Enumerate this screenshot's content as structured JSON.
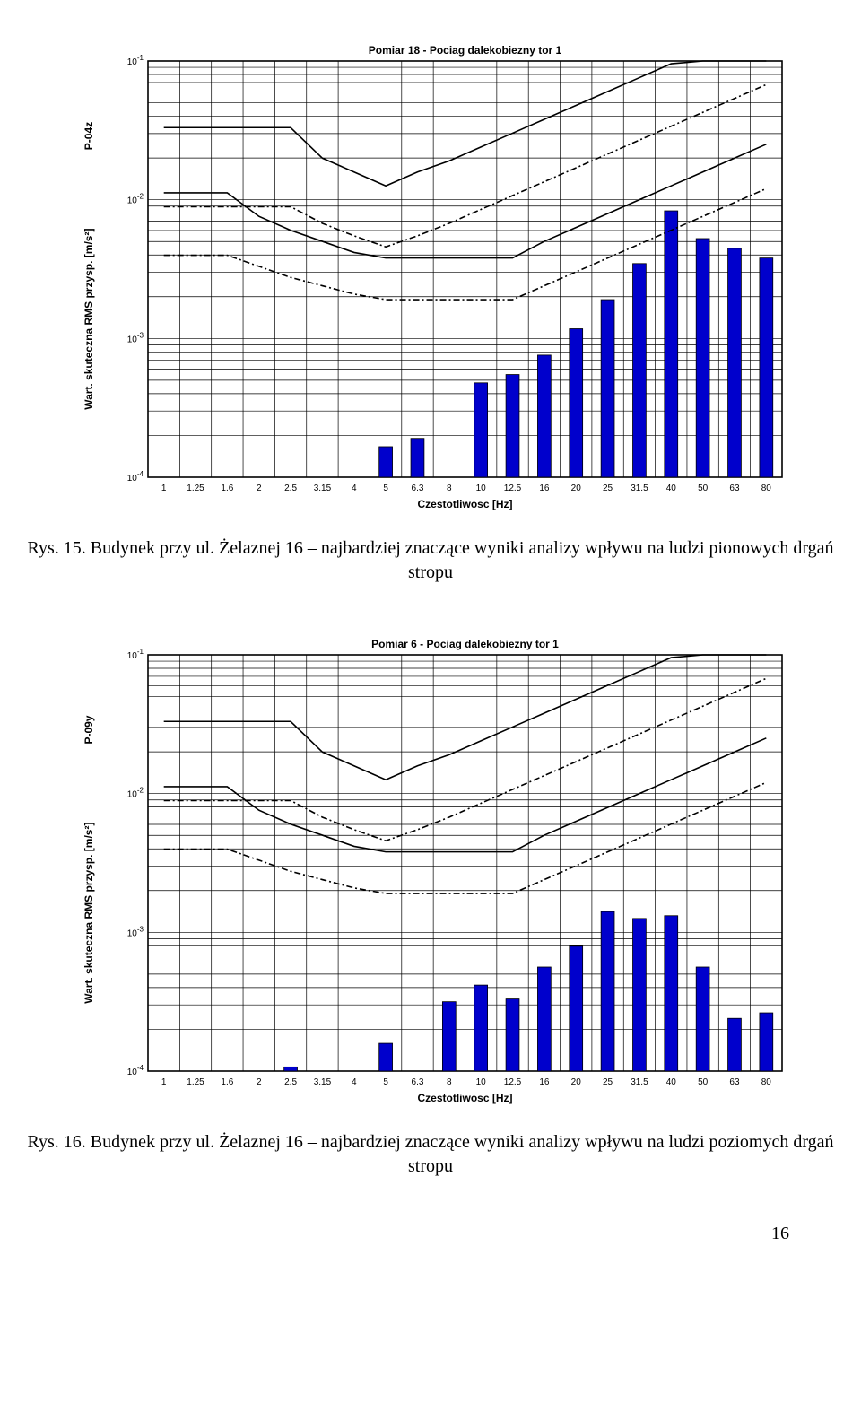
{
  "page_number": "16",
  "charts": [
    {
      "id": "chart1",
      "title": "Pomiar 18 - Pociag dalekobiezny tor 1",
      "y_rot_label": "P-04z",
      "x_categories": [
        "1",
        "1.25",
        "1.6",
        "2",
        "2.5",
        "3.15",
        "4",
        "5",
        "6.3",
        "8",
        "10",
        "12.5",
        "16",
        "20",
        "25",
        "31.5",
        "40",
        "50",
        "63",
        "80"
      ],
      "xlabel": "Czestotliwosc [Hz]",
      "ylabel": "Wart. skuteczna RMS przysp. [m/s²]",
      "y_decades": [
        -4,
        -3,
        -2,
        -1
      ],
      "y_exp_min": -4,
      "y_exp_max": -1,
      "bar_color": "#0000cc",
      "bar_edge": "#000000",
      "grid_color": "#000000",
      "bg": "#ffffff",
      "title_fontsize": 12,
      "tick_fontsize": 10,
      "bars_exp": [
        null,
        null,
        null,
        null,
        null,
        null,
        null,
        -3.78,
        -3.72,
        null,
        -3.32,
        -3.26,
        -3.12,
        -2.93,
        -2.72,
        -2.46,
        -2.08,
        -2.28,
        -2.35,
        -2.42
      ],
      "env": {
        "solid_upper_exp": [
          -1.48,
          -1.48,
          -1.48,
          -1.48,
          -1.48,
          -1.7,
          -1.8,
          -1.9,
          -1.8,
          -1.72,
          -1.62,
          -1.52,
          -1.42,
          -1.32,
          -1.22,
          -1.12,
          -1.02,
          -1.0,
          -1.0,
          -1.0
        ],
        "solid_lower_exp": [
          -1.95,
          -1.95,
          -1.95,
          -2.12,
          -2.22,
          -2.3,
          -2.38,
          -2.42,
          -2.42,
          -2.42,
          -2.42,
          -2.42,
          -2.3,
          -2.2,
          -2.1,
          -2.0,
          -1.9,
          -1.8,
          -1.7,
          -1.6
        ],
        "dashdot_upper_exp": [
          -2.05,
          -2.05,
          -2.05,
          -2.05,
          -2.05,
          -2.17,
          -2.26,
          -2.34,
          -2.26,
          -2.17,
          -2.07,
          -1.97,
          -1.87,
          -1.77,
          -1.67,
          -1.57,
          -1.47,
          -1.37,
          -1.27,
          -1.17
        ],
        "dashdot_lower_exp": [
          -2.4,
          -2.4,
          -2.4,
          -2.48,
          -2.56,
          -2.62,
          -2.68,
          -2.72,
          -2.72,
          -2.72,
          -2.72,
          -2.72,
          -2.62,
          -2.52,
          -2.42,
          -2.32,
          -2.22,
          -2.12,
          -2.02,
          -1.92
        ]
      }
    },
    {
      "id": "chart2",
      "title": "Pomiar 6 - Pociag dalekobiezny tor 1",
      "y_rot_label": "P-09y",
      "x_categories": [
        "1",
        "1.25",
        "1.6",
        "2",
        "2.5",
        "3.15",
        "4",
        "5",
        "6.3",
        "8",
        "10",
        "12.5",
        "16",
        "20",
        "25",
        "31.5",
        "40",
        "50",
        "63",
        "80"
      ],
      "xlabel": "Czestotliwosc [Hz]",
      "ylabel": "Wart. skuteczna RMS przysp. [m/s²]",
      "y_decades": [
        -4,
        -3,
        -2,
        -1
      ],
      "y_exp_min": -4,
      "y_exp_max": -1,
      "bar_color": "#0000cc",
      "bar_edge": "#000000",
      "grid_color": "#000000",
      "bg": "#ffffff",
      "title_fontsize": 12,
      "tick_fontsize": 10,
      "bars_exp": [
        null,
        null,
        null,
        null,
        -3.97,
        null,
        null,
        -3.8,
        null,
        -3.5,
        -3.38,
        -3.48,
        -3.25,
        -3.1,
        -2.85,
        -2.9,
        -2.88,
        -3.25,
        -3.62,
        -3.58
      ],
      "env": {
        "solid_upper_exp": [
          -1.48,
          -1.48,
          -1.48,
          -1.48,
          -1.48,
          -1.7,
          -1.8,
          -1.9,
          -1.8,
          -1.72,
          -1.62,
          -1.52,
          -1.42,
          -1.32,
          -1.22,
          -1.12,
          -1.02,
          -1.0,
          -1.0,
          -1.0
        ],
        "solid_lower_exp": [
          -1.95,
          -1.95,
          -1.95,
          -2.12,
          -2.22,
          -2.3,
          -2.38,
          -2.42,
          -2.42,
          -2.42,
          -2.42,
          -2.42,
          -2.3,
          -2.2,
          -2.1,
          -2.0,
          -1.9,
          -1.8,
          -1.7,
          -1.6
        ],
        "dashdot_upper_exp": [
          -2.05,
          -2.05,
          -2.05,
          -2.05,
          -2.05,
          -2.17,
          -2.26,
          -2.34,
          -2.26,
          -2.17,
          -2.07,
          -1.97,
          -1.87,
          -1.77,
          -1.67,
          -1.57,
          -1.47,
          -1.37,
          -1.27,
          -1.17
        ],
        "dashdot_lower_exp": [
          -2.4,
          -2.4,
          -2.4,
          -2.48,
          -2.56,
          -2.62,
          -2.68,
          -2.72,
          -2.72,
          -2.72,
          -2.72,
          -2.72,
          -2.62,
          -2.52,
          -2.42,
          -2.32,
          -2.22,
          -2.12,
          -2.02,
          -1.92
        ]
      }
    }
  ],
  "captions": {
    "chart1": "Rys. 15. Budynek przy ul. Żelaznej 16 – najbardziej znaczące wyniki analizy wpływu na ludzi pionowych drgań stropu",
    "chart2": "Rys. 16. Budynek przy ul. Żelaznej 16 – najbardziej znaczące wyniki analizy wpływu na ludzi poziomych drgań stropu"
  }
}
